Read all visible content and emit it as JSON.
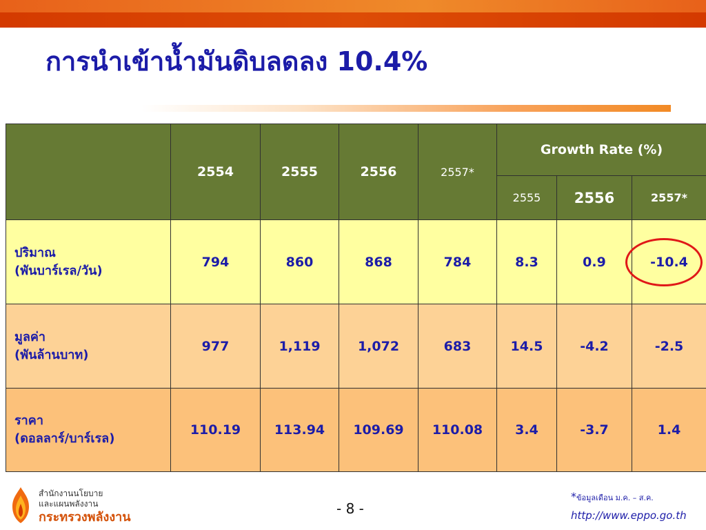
{
  "title": "การนำเข้าน้ำมันดิบลดลง 10.4%",
  "table": {
    "year_headers": [
      "2554",
      "2555",
      "2556",
      "2557*"
    ],
    "growth_header": "Growth Rate (%)",
    "growth_subheaders": [
      "2555",
      "2556",
      "2557*"
    ],
    "rows": [
      {
        "label_line1": "ปริมาณ",
        "label_line2": "(พันบาร์เรล/วัน)",
        "values": [
          "794",
          "860",
          "868",
          "784",
          "8.3",
          "0.9",
          "-10.4"
        ]
      },
      {
        "label_line1": "มูลค่า",
        "label_line2": "(พันล้านบาท)",
        "values": [
          "977",
          "1,119",
          "1,072",
          "683",
          "14.5",
          "-4.2",
          "-2.5"
        ]
      },
      {
        "label_line1": "ราคา",
        "label_line2": "(ดอลลาร์/บาร์เรล)",
        "values": [
          "110.19",
          "113.94",
          "109.69",
          "110.08",
          "3.4",
          "-3.7",
          "1.4"
        ]
      }
    ],
    "highlighted_value": "-10.4"
  },
  "footer": {
    "org_line1": "สำนักงานนโยบาย",
    "org_line2": "และแผนพลังงาน",
    "org_line3": "กระทรวงพลังงาน",
    "page_number": "- 8 -",
    "footnote_star": "*",
    "footnote_text": "ข้อมูลเดือน ม.ค. – ส.ค.",
    "url": "http://www.eppo.go.th"
  },
  "colors": {
    "header_bg": "#667a34",
    "row1_bg": "#ffffa0",
    "row2_bg": "#fdd296",
    "row3_bg": "#fcc17a",
    "text_blue": "#1c1ca8",
    "accent_orange": "#e8611a",
    "circle_red": "#e01818"
  },
  "icons": {
    "logo": "flame-logo-icon"
  }
}
